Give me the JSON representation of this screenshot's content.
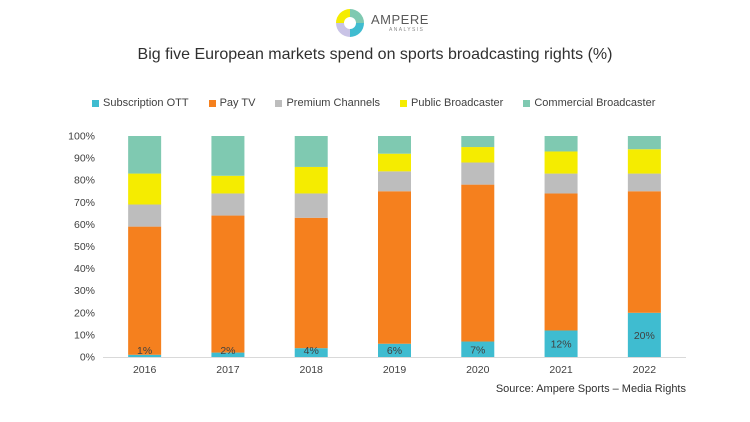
{
  "brand": {
    "name": "AMPERE",
    "sub": "ANALYSIS"
  },
  "colors": {
    "Subscription OTT": "#3fbcd0",
    "Pay TV": "#f5801e",
    "Premium Channels": "#bdbdbd",
    "Public Broadcaster": "#f5ec00",
    "Commercial Broadcaster": "#7fc9b1"
  },
  "source": "Source: Ampere Sports – Media Rights",
  "chart_data": {
    "type": "bar",
    "stacked": true,
    "title": "Big five European markets spend on sports broadcasting rights (%)",
    "xlabel": "",
    "ylabel": "",
    "ylim": [
      0,
      100
    ],
    "yticks": [
      "0%",
      "10%",
      "20%",
      "30%",
      "40%",
      "50%",
      "60%",
      "70%",
      "80%",
      "90%",
      "100%"
    ],
    "categories": [
      "2016",
      "2017",
      "2018",
      "2019",
      "2020",
      "2021",
      "2022"
    ],
    "legend_position": "top",
    "series": [
      {
        "name": "Subscription OTT",
        "values": [
          1,
          2,
          4,
          6,
          7,
          12,
          20
        ],
        "labels": [
          "1%",
          "2%",
          "4%",
          "6%",
          "7%",
          "12%",
          "20%"
        ]
      },
      {
        "name": "Pay TV",
        "values": [
          58,
          62,
          59,
          69,
          71,
          62,
          55
        ]
      },
      {
        "name": "Premium Channels",
        "values": [
          10,
          10,
          11,
          9,
          10,
          9,
          8
        ]
      },
      {
        "name": "Public Broadcaster",
        "values": [
          14,
          8,
          12,
          8,
          7,
          10,
          11
        ]
      },
      {
        "name": "Commercial Broadcaster",
        "values": [
          17,
          18,
          14,
          8,
          5,
          7,
          6
        ]
      }
    ]
  }
}
